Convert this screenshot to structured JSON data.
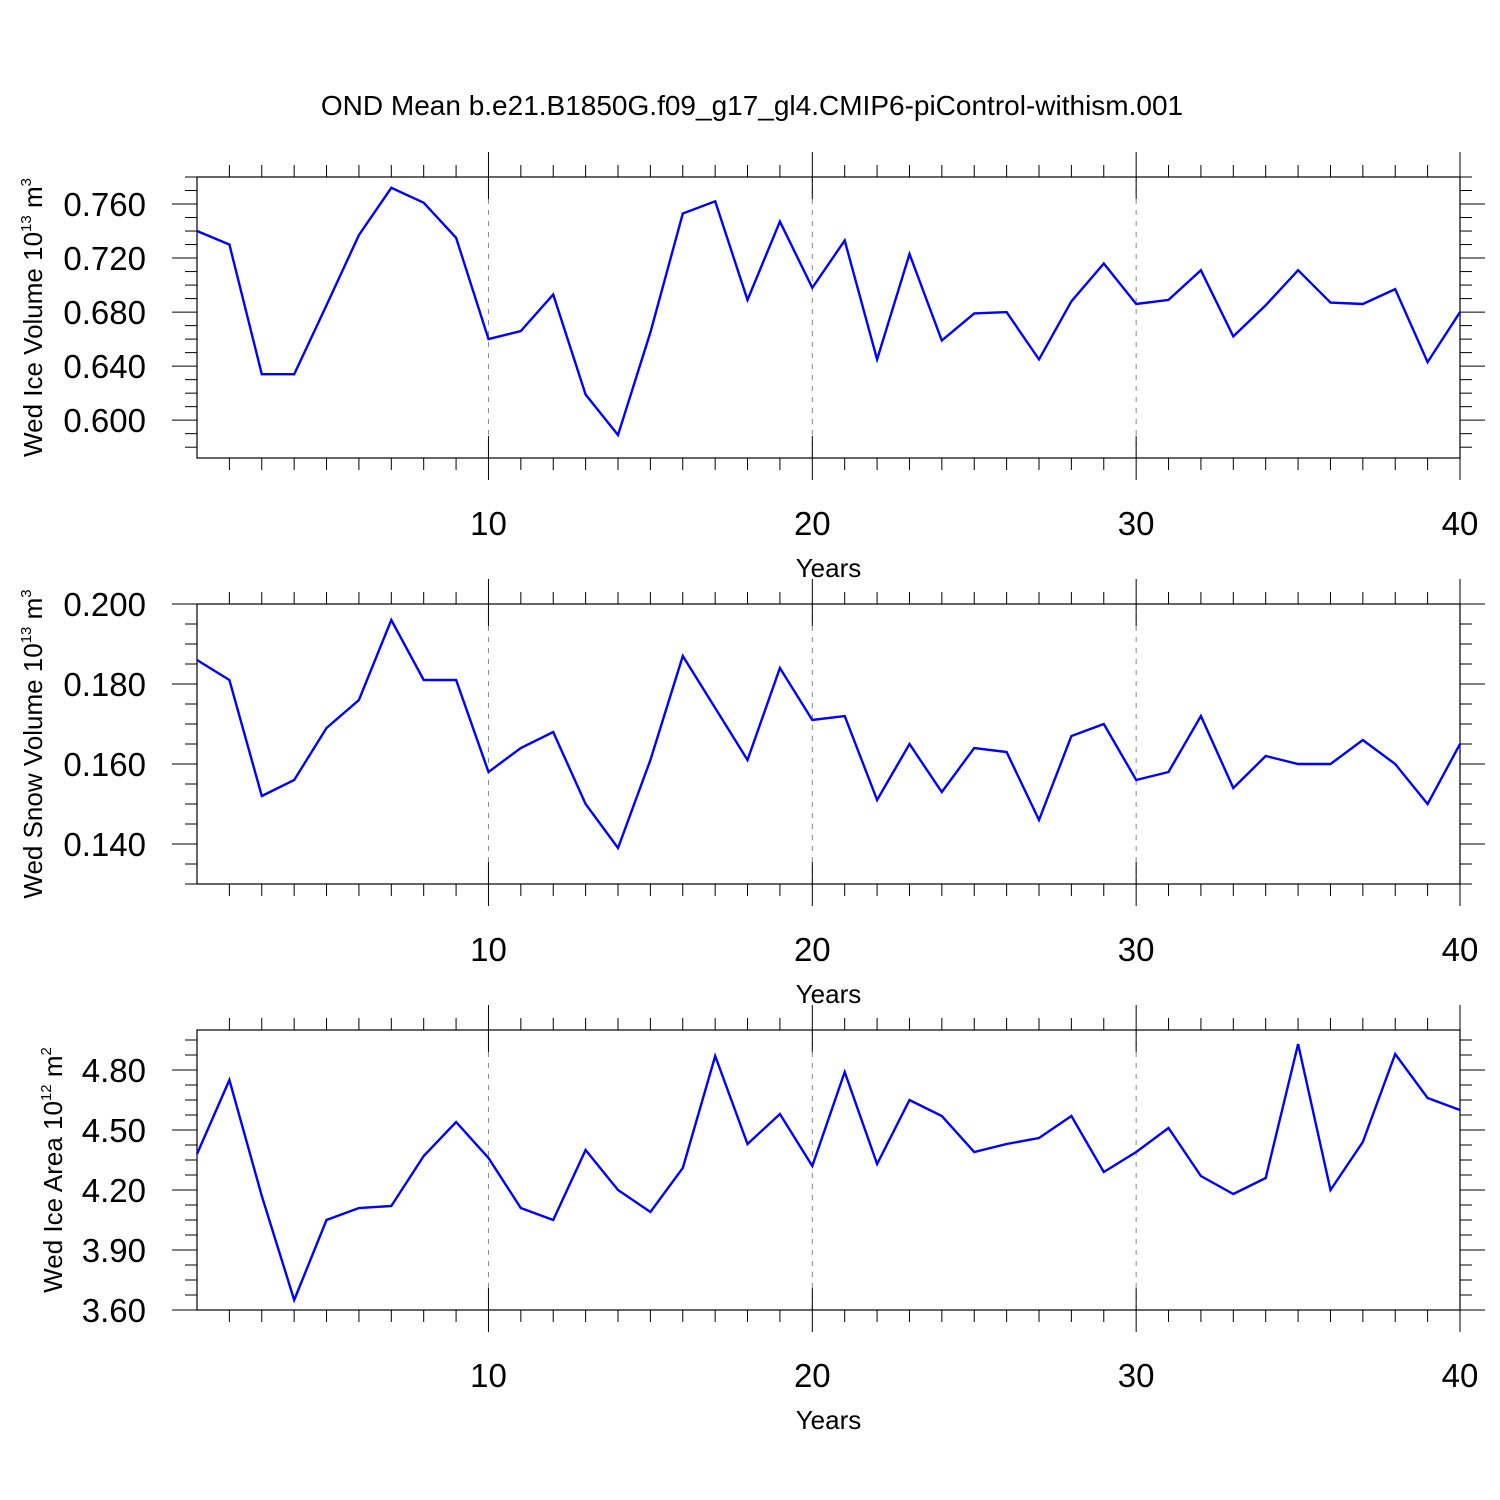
{
  "title": "OND Mean b.e21.B1850G.f09_g17_gl4.CMIP6-piControl-withism.001",
  "chart_data": [
    {
      "type": "line",
      "title": "",
      "xlabel": "Years",
      "ylabel": {
        "text": "Wed Ice Volume 10",
        "exp": "13",
        "unit": " m",
        "unit_exp": "3"
      },
      "xlim": [
        1,
        40
      ],
      "ylim": [
        0.572,
        0.78
      ],
      "xticks": [
        10,
        20,
        30,
        40
      ],
      "yticks": [
        0.6,
        0.64,
        0.68,
        0.72,
        0.76
      ],
      "ytick_labels": [
        "0.600",
        "0.640",
        "0.680",
        "0.720",
        "0.760"
      ],
      "grid": "vertical dashed at major x ticks",
      "color": "#0000ff",
      "x": [
        1,
        2,
        3,
        4,
        5,
        6,
        7,
        8,
        9,
        10,
        11,
        12,
        13,
        14,
        15,
        16,
        17,
        18,
        19,
        20,
        21,
        22,
        23,
        24,
        25,
        26,
        27,
        28,
        29,
        30,
        31,
        32,
        33,
        34,
        35,
        36,
        37,
        38,
        39,
        40
      ],
      "values": [
        0.74,
        0.73,
        0.634,
        0.634,
        0.685,
        0.737,
        0.772,
        0.761,
        0.735,
        0.66,
        0.666,
        0.693,
        0.619,
        0.589,
        0.665,
        0.753,
        0.762,
        0.689,
        0.747,
        0.698,
        0.733,
        0.645,
        0.723,
        0.659,
        0.679,
        0.68,
        0.645,
        0.688,
        0.716,
        0.686,
        0.689,
        0.711,
        0.662,
        0.685,
        0.711,
        0.687,
        0.686,
        0.697,
        0.643,
        0.68
      ]
    },
    {
      "type": "line",
      "title": "",
      "xlabel": "Years",
      "ylabel": {
        "text": "Wed Snow Volume 10",
        "exp": "13",
        "unit": " m",
        "unit_exp": "3"
      },
      "xlim": [
        1,
        40
      ],
      "ylim": [
        0.13,
        0.2
      ],
      "xticks": [
        10,
        20,
        30,
        40
      ],
      "yticks": [
        0.14,
        0.16,
        0.18,
        0.2
      ],
      "ytick_labels": [
        "0.140",
        "0.160",
        "0.180",
        "0.200"
      ],
      "grid": "vertical dashed at major x ticks",
      "color": "#0000ff",
      "x": [
        1,
        2,
        3,
        4,
        5,
        6,
        7,
        8,
        9,
        10,
        11,
        12,
        13,
        14,
        15,
        16,
        17,
        18,
        19,
        20,
        21,
        22,
        23,
        24,
        25,
        26,
        27,
        28,
        29,
        30,
        31,
        32,
        33,
        34,
        35,
        36,
        37,
        38,
        39,
        40
      ],
      "values": [
        0.186,
        0.181,
        0.152,
        0.156,
        0.169,
        0.176,
        0.196,
        0.181,
        0.181,
        0.158,
        0.164,
        0.168,
        0.15,
        0.139,
        0.161,
        0.187,
        0.174,
        0.161,
        0.184,
        0.171,
        0.172,
        0.151,
        0.165,
        0.153,
        0.164,
        0.163,
        0.146,
        0.167,
        0.17,
        0.156,
        0.158,
        0.172,
        0.154,
        0.162,
        0.16,
        0.16,
        0.166,
        0.16,
        0.15,
        0.165
      ]
    },
    {
      "type": "line",
      "title": "",
      "xlabel": "Years",
      "ylabel": {
        "text": "Wed Ice Area 10",
        "exp": "12",
        "unit": " m",
        "unit_exp": "2"
      },
      "xlim": [
        1,
        40
      ],
      "ylim": [
        3.6,
        5.0
      ],
      "xticks": [
        10,
        20,
        30,
        40
      ],
      "yticks": [
        3.6,
        3.9,
        4.2,
        4.5,
        4.8
      ],
      "ytick_labels": [
        "3.60",
        "3.90",
        "4.20",
        "4.50",
        "4.80"
      ],
      "grid": "vertical dashed at major x ticks",
      "color": "#0000ff",
      "x": [
        1,
        2,
        3,
        4,
        5,
        6,
        7,
        8,
        9,
        10,
        11,
        12,
        13,
        14,
        15,
        16,
        17,
        18,
        19,
        20,
        21,
        22,
        23,
        24,
        25,
        26,
        27,
        28,
        29,
        30,
        31,
        32,
        33,
        34,
        35,
        36,
        37,
        38,
        39,
        40
      ],
      "values": [
        4.38,
        4.75,
        4.17,
        3.65,
        4.05,
        4.11,
        4.12,
        4.37,
        4.54,
        4.36,
        4.11,
        4.05,
        4.4,
        4.2,
        4.09,
        4.31,
        4.87,
        4.43,
        4.58,
        4.32,
        4.79,
        4.33,
        4.65,
        4.57,
        4.39,
        4.43,
        4.46,
        4.57,
        4.29,
        4.39,
        4.51,
        4.27,
        4.18,
        4.26,
        4.93,
        4.2,
        4.44,
        4.88,
        4.66,
        4.6
      ]
    }
  ]
}
